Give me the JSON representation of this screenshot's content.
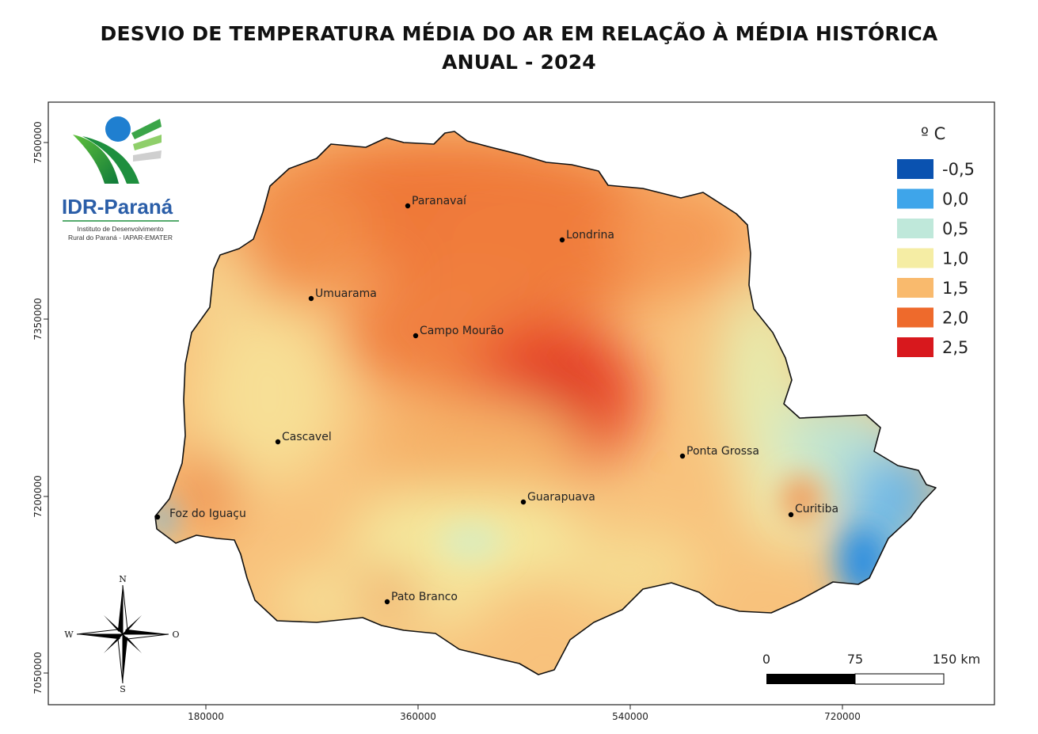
{
  "title": {
    "line1": "DESVIO DE TEMPERATURA MÉDIA DO AR EM RELAÇÃO À MÉDIA HISTÓRICA",
    "line2": "ANUAL - 2024"
  },
  "logo": {
    "name": "IDR-Paraná",
    "subtitle_line1": "Instituto de Desenvolvimento",
    "subtitle_line2": "Rural do Paraná - IAPAR-EMATER"
  },
  "axes": {
    "x_ticks": [
      "180000",
      "360000",
      "540000",
      "720000"
    ],
    "y_ticks": [
      "7500000",
      "7350000",
      "7200000",
      "7050000"
    ]
  },
  "legend": {
    "unit": "º C",
    "items": [
      {
        "label": "-0,5",
        "color": "#0a52b0"
      },
      {
        "label": "0,0",
        "color": "#3ea5ea"
      },
      {
        "label": "0,5",
        "color": "#bfe8da"
      },
      {
        "label": "1,0",
        "color": "#f5eda4"
      },
      {
        "label": "1,5",
        "color": "#f9ba6d"
      },
      {
        "label": "2,0",
        "color": "#ee6a2c"
      },
      {
        "label": "2,5",
        "color": "#d8181d"
      }
    ]
  },
  "cities": [
    {
      "name": "Paranavaí"
    },
    {
      "name": "Londrina"
    },
    {
      "name": "Umuarama"
    },
    {
      "name": "Campo Mourão"
    },
    {
      "name": "Cascavel"
    },
    {
      "name": "Ponta Grossa"
    },
    {
      "name": "Guarapuava"
    },
    {
      "name": "Curitiba"
    },
    {
      "name": "Foz do Iguaçu"
    },
    {
      "name": "Pato Branco"
    }
  ],
  "compass": {
    "n": "N",
    "s": "S",
    "w": "W",
    "e": "O"
  },
  "scale_bar": {
    "labels": [
      "0",
      "75",
      "150 km"
    ]
  }
}
